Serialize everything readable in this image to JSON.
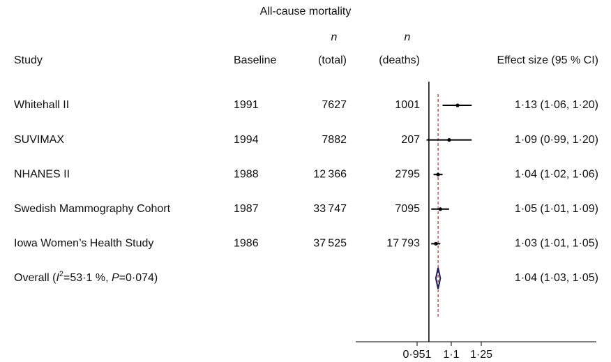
{
  "title": "All-cause mortality",
  "columns": [
    {
      "label": "Study"
    },
    {
      "label": "Baseline"
    },
    {
      "top": "n",
      "label": "(total)"
    },
    {
      "top": "n",
      "label": "(deaths)"
    },
    {
      "label": "Effect size (95 % CI)"
    }
  ],
  "chart_data": {
    "type": "forest",
    "categories": [
      "Whitehall II",
      "SUVIMAX",
      "NHANES II",
      "Swedish Mammography Cohort",
      "Iowa Women’s Health Study"
    ],
    "baseline": [
      1991,
      1994,
      1988,
      1987,
      1986
    ],
    "total": [
      "7627",
      "7882",
      "12 366",
      "33 747",
      "37 525"
    ],
    "deaths": [
      "1001",
      "207",
      "2795",
      "7095",
      "17 793"
    ],
    "values": [
      1.13,
      1.09,
      1.04,
      1.05,
      1.03
    ],
    "lower": [
      1.06,
      0.99,
      1.02,
      1.01,
      1.01
    ],
    "upper": [
      1.2,
      1.2,
      1.06,
      1.09,
      1.05
    ],
    "value_labels": [
      "1·13 (1·06, 1·20)",
      "1·09 (0·99, 1·20)",
      "1·04 (1·02, 1·06)",
      "1·05 (1·01, 1·09)",
      "1·03 (1·01, 1·05)"
    ],
    "overall": {
      "label_parts": [
        "Overall (",
        "I",
        "2",
        "=53·1 %, ",
        "P",
        "=0·074)"
      ],
      "value": 1.04,
      "lower": 1.03,
      "upper": 1.05,
      "value_label": "1·04 (1·03, 1·05)"
    },
    "null_line": 1,
    "log_scale": true,
    "xlim": [
      0.951,
      1.25
    ],
    "xticks": [
      {
        "value": 0.951,
        "label": "0·951"
      },
      {
        "value": 1.1,
        "label": "1·1"
      },
      {
        "value": 1.25,
        "label": "1·25"
      }
    ],
    "color": "#000000",
    "overall_color": "#1c1c5a",
    "overall_line_color": "#a83232"
  }
}
